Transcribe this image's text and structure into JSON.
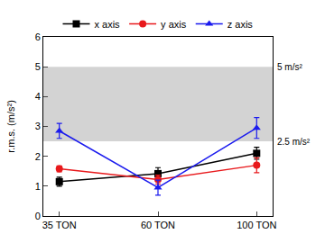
{
  "chart_data": {
    "type": "line",
    "categories": [
      "35 TON",
      "60 TON",
      "100 TON"
    ],
    "y_label": "r.m.s. (m/s²)",
    "ylim": [
      0,
      6
    ],
    "yticks": [
      0,
      1,
      2,
      3,
      4,
      5,
      6
    ],
    "grid": false,
    "legend": "top",
    "reference_band": [
      2.5,
      5
    ],
    "annotations": [
      {
        "text": "5 m/s²",
        "y": 5
      },
      {
        "text": "2.5 m/s²",
        "y": 2.5
      }
    ],
    "series": [
      {
        "name": "x axis",
        "color": "#000000",
        "marker": "square",
        "values": [
          1.15,
          1.42,
          2.1
        ],
        "errors": [
          0.15,
          0.2,
          0.2
        ]
      },
      {
        "name": "y axis",
        "color": "#e8191c",
        "marker": "circle",
        "values": [
          1.58,
          1.22,
          1.7
        ],
        "errors": [
          0.1,
          0.15,
          0.25
        ]
      },
      {
        "name": "z axis",
        "color": "#1a1aee",
        "marker": "triangle-up",
        "values": [
          2.85,
          0.95,
          2.95
        ],
        "errors": [
          0.25,
          0.25,
          0.35
        ]
      }
    ]
  }
}
